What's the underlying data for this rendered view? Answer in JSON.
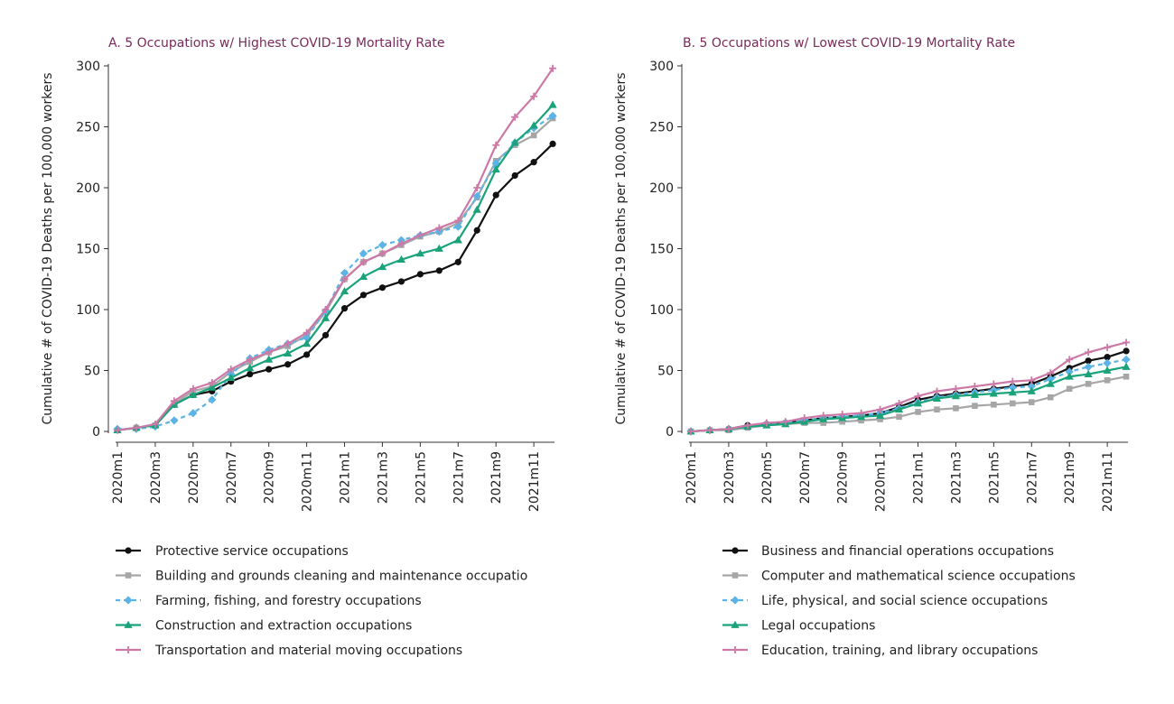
{
  "chart_data": [
    {
      "type": "line",
      "title": "A. 5 Occupations w/ Highest COVID-19 Mortality Rate",
      "ylabel": "Cumulative # of COVID-19 Deaths per 100,000 workers",
      "xlabel": "",
      "ylim": [
        0,
        300
      ],
      "yticks": [
        "0",
        "50",
        "100",
        "150",
        "200",
        "250",
        "300"
      ],
      "x": [
        "2020m1",
        "2020m2",
        "2020m3",
        "2020m4",
        "2020m5",
        "2020m6",
        "2020m7",
        "2020m8",
        "2020m9",
        "2020m10",
        "2020m11",
        "2020m12",
        "2021m1",
        "2021m2",
        "2021m3",
        "2021m4",
        "2021m5",
        "2021m6",
        "2021m7",
        "2021m8",
        "2021m9",
        "2021m10",
        "2021m11",
        "2021m12"
      ],
      "xticks": [
        "2020m1",
        "2020m3",
        "2020m5",
        "2020m7",
        "2020m9",
        "2020m11",
        "2021m1",
        "2021m3",
        "2021m5",
        "2021m7",
        "2021m9",
        "2021m11"
      ],
      "series": [
        {
          "name": "Protective service occupations",
          "color": "#111111",
          "marker": "circle",
          "dash": "",
          "values": [
            1,
            3,
            5,
            22,
            30,
            33,
            41,
            47,
            51,
            55,
            63,
            79,
            101,
            112,
            118,
            123,
            129,
            132,
            139,
            165,
            194,
            210,
            221,
            236
          ]
        },
        {
          "name": "Building and grounds cleaning and maintenance occupatio",
          "color": "#a6a6a6",
          "marker": "square",
          "dash": "",
          "values": [
            1,
            3,
            5,
            23,
            33,
            37,
            49,
            57,
            65,
            70,
            79,
            98,
            125,
            139,
            146,
            153,
            160,
            164,
            171,
            192,
            222,
            235,
            243,
            257
          ]
        },
        {
          "name": "Farming, fishing, and forestry occupations",
          "color": "#5bb4e5",
          "marker": "diamond",
          "dash": "5,4",
          "values": [
            2,
            2,
            4,
            9,
            15,
            26,
            47,
            60,
            67,
            72,
            77,
            99,
            130,
            146,
            153,
            157,
            161,
            164,
            168,
            193,
            220,
            237,
            249,
            259
          ]
        },
        {
          "name": "Construction and extraction occupations",
          "color": "#1aa37a",
          "marker": "triangle",
          "dash": "",
          "values": [
            1,
            3,
            5,
            22,
            30,
            36,
            44,
            52,
            59,
            64,
            72,
            93,
            115,
            127,
            135,
            141,
            146,
            150,
            157,
            182,
            215,
            237,
            251,
            268
          ]
        },
        {
          "name": "Transportation and material moving occupations",
          "color": "#cc79a7",
          "marker": "plus",
          "dash": "",
          "values": [
            1,
            3,
            6,
            25,
            35,
            40,
            51,
            59,
            65,
            72,
            81,
            100,
            125,
            139,
            146,
            154,
            161,
            167,
            173,
            200,
            235,
            258,
            275,
            298
          ]
        }
      ],
      "legend": "bottom"
    },
    {
      "type": "line",
      "title": "B. 5 Occupations w/ Lowest COVID-19 Mortality Rate",
      "ylabel": "Cumulative # of COVID-19 Deaths per 100,000 workers",
      "xlabel": "",
      "ylim": [
        0,
        300
      ],
      "yticks": [
        "0",
        "50",
        "100",
        "150",
        "200",
        "250",
        "300"
      ],
      "x": [
        "2020m1",
        "2020m2",
        "2020m3",
        "2020m4",
        "2020m5",
        "2020m6",
        "2020m7",
        "2020m8",
        "2020m9",
        "2020m10",
        "2020m11",
        "2020m12",
        "2021m1",
        "2021m2",
        "2021m3",
        "2021m4",
        "2021m5",
        "2021m6",
        "2021m7",
        "2021m8",
        "2021m9",
        "2021m10",
        "2021m11",
        "2021m12"
      ],
      "xticks": [
        "2020m1",
        "2020m3",
        "2020m5",
        "2020m7",
        "2020m9",
        "2020m11",
        "2021m1",
        "2021m3",
        "2021m5",
        "2021m7",
        "2021m9",
        "2021m11"
      ],
      "series": [
        {
          "name": "Business and financial operations occupations",
          "color": "#111111",
          "marker": "circle",
          "dash": "",
          "values": [
            0,
            1,
            2,
            5,
            6,
            7,
            9,
            11,
            12,
            13,
            15,
            20,
            26,
            29,
            31,
            33,
            35,
            37,
            39,
            45,
            52,
            58,
            61,
            66
          ]
        },
        {
          "name": "Computer and mathematical science occupations",
          "color": "#a6a6a6",
          "marker": "square",
          "dash": "",
          "values": [
            0,
            1,
            1,
            3,
            5,
            6,
            7,
            7,
            8,
            9,
            10,
            12,
            16,
            18,
            19,
            21,
            22,
            23,
            24,
            28,
            35,
            39,
            42,
            45
          ]
        },
        {
          "name": "Life, physical, and social science occupations",
          "color": "#5bb4e5",
          "marker": "diamond",
          "dash": "5,4",
          "values": [
            0,
            1,
            2,
            4,
            6,
            7,
            9,
            11,
            12,
            13,
            15,
            19,
            24,
            28,
            30,
            32,
            34,
            36,
            37,
            43,
            49,
            53,
            56,
            59
          ]
        },
        {
          "name": "Legal occupations",
          "color": "#1aa37a",
          "marker": "triangle",
          "dash": "",
          "values": [
            0,
            1,
            2,
            4,
            5,
            6,
            8,
            10,
            11,
            12,
            13,
            18,
            23,
            27,
            29,
            30,
            31,
            32,
            33,
            39,
            45,
            47,
            50,
            53
          ]
        },
        {
          "name": "Education, training, and library occupations",
          "color": "#cc79a7",
          "marker": "plus",
          "dash": "",
          "values": [
            0,
            1,
            2,
            5,
            7,
            8,
            11,
            13,
            14,
            15,
            18,
            23,
            29,
            33,
            35,
            37,
            39,
            41,
            42,
            48,
            59,
            65,
            69,
            73
          ]
        }
      ],
      "legend": "bottom"
    }
  ]
}
